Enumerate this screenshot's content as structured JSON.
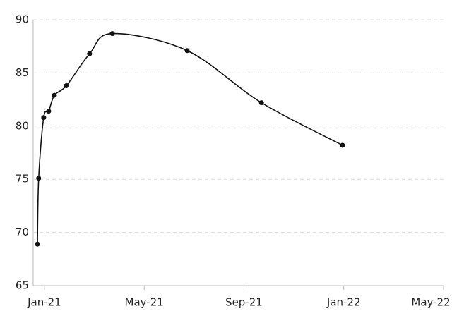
{
  "chart_data": {
    "type": "line",
    "x": [
      -0.28,
      -0.23,
      -0.03,
      0.17,
      0.4,
      0.88,
      1.81,
      2.72,
      5.72,
      8.7,
      11.95
    ],
    "series": [
      {
        "color": "#111111",
        "values": [
          68.9,
          75.1,
          80.8,
          81.4,
          82.9,
          83.8,
          86.8,
          88.7,
          87.1,
          82.2,
          78.2
        ]
      }
    ],
    "xlim": [
      -0.45,
      16
    ],
    "xticks": [
      {
        "value": 0,
        "label": "Jan-21"
      },
      {
        "value": 4,
        "label": "May-21"
      },
      {
        "value": 8,
        "label": "Sep-21"
      },
      {
        "value": 12,
        "label": "Jan-22"
      },
      {
        "value": 16,
        "label": "May-22"
      }
    ],
    "ylim": [
      65,
      90
    ],
    "yticks": [
      65,
      70,
      75,
      80,
      85,
      90
    ],
    "grid": true
  }
}
